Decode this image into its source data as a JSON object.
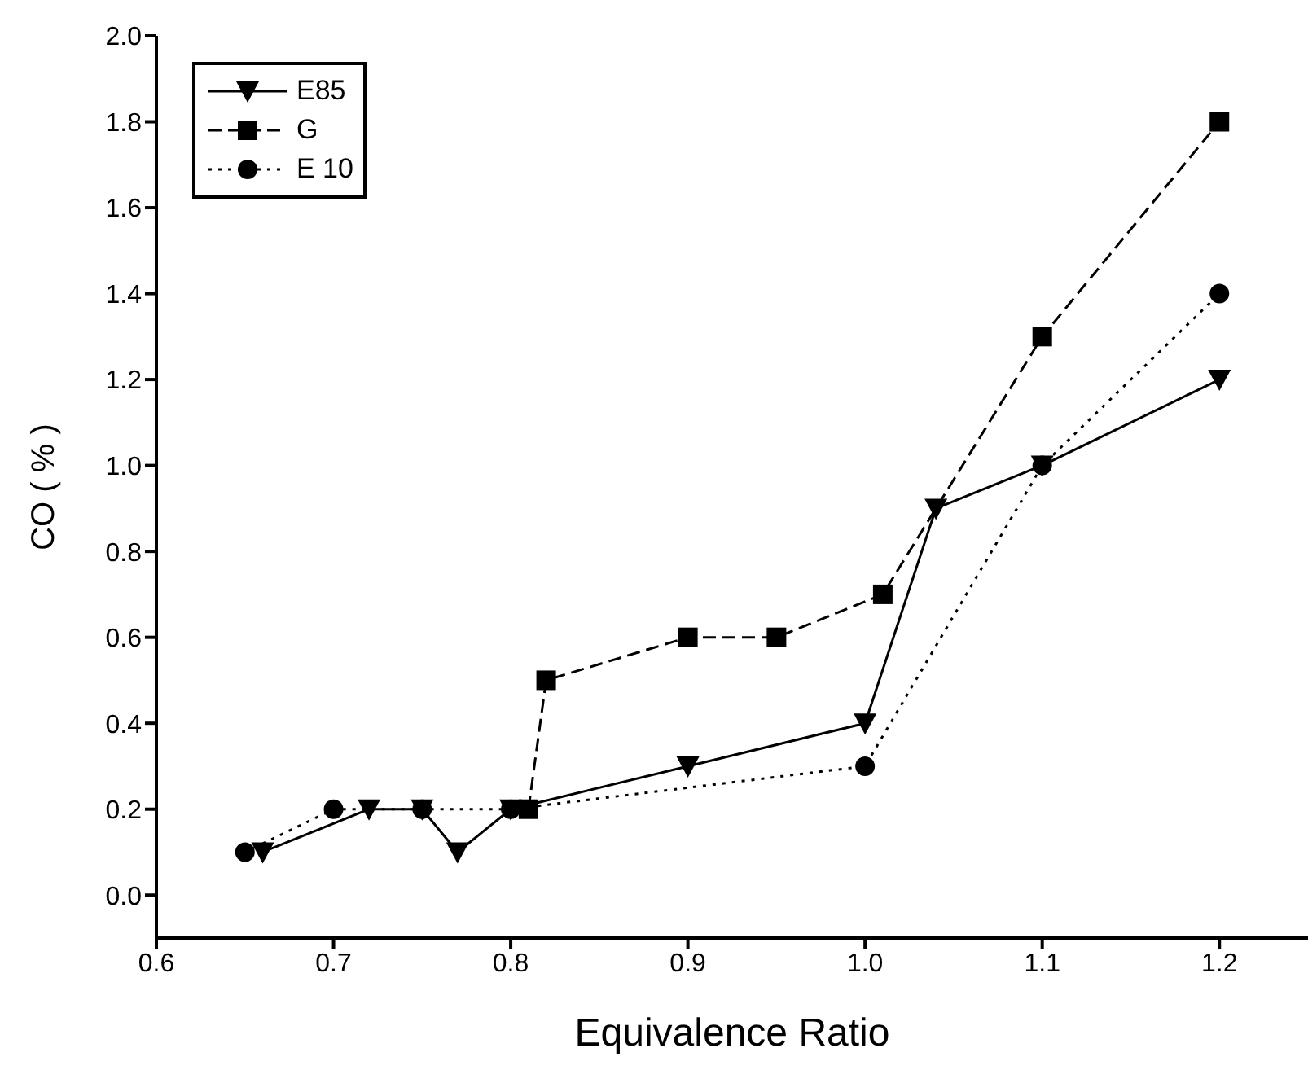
{
  "chart_data": {
    "type": "line",
    "xlabel": "Equivalence Ratio",
    "ylabel": "CO ( % )",
    "xlim": [
      0.6,
      1.25
    ],
    "xticks": [
      {
        "value": 0.6,
        "label": "0.6"
      },
      {
        "value": 0.7,
        "label": "0.7"
      },
      {
        "value": 0.8,
        "label": "0.8"
      },
      {
        "value": 0.9,
        "label": "0.9"
      },
      {
        "value": 1.0,
        "label": "1.0"
      },
      {
        "value": 1.1,
        "label": "1.1"
      },
      {
        "value": 1.2,
        "label": "1.2"
      }
    ],
    "ylim": [
      -0.1,
      2.0
    ],
    "yticks": [
      {
        "value": 0,
        "label": "0.0"
      },
      {
        "value": 0.2,
        "label": "0.2"
      },
      {
        "value": 0.4,
        "label": "0.4"
      },
      {
        "value": 0.6,
        "label": "0.6"
      },
      {
        "value": 0.8,
        "label": "0.8"
      },
      {
        "value": 1.0,
        "label": "1.0"
      },
      {
        "value": 1.2,
        "label": "1.2"
      },
      {
        "value": 1.4,
        "label": "1.4"
      },
      {
        "value": 1.6,
        "label": "1.6"
      },
      {
        "value": 1.8,
        "label": "1.8"
      },
      {
        "value": 2.0,
        "label": "2.0"
      }
    ],
    "grid": false,
    "legend": "top left",
    "series": [
      {
        "name": "E85",
        "color": "#000000",
        "marker": "triangle",
        "line_style": "solid",
        "x": [
          0.66,
          0.72,
          0.75,
          0.77,
          0.8,
          0.9,
          1.0,
          1.04,
          1.1,
          1.2
        ],
        "values": [
          0.1,
          0.2,
          0.2,
          0.1,
          0.2,
          0.3,
          0.4,
          0.9,
          1.0,
          1.2
        ]
      },
      {
        "name": "G",
        "color": "#000000",
        "marker": "square",
        "line_style": "dashed",
        "x": [
          0.81,
          0.82,
          0.9,
          0.95,
          1.01,
          1.1,
          1.2
        ],
        "values": [
          0.2,
          0.5,
          0.6,
          0.6,
          0.7,
          1.3,
          1.8
        ]
      },
      {
        "name": "E 10",
        "color": "#000000",
        "marker": "circle",
        "line_style": "dotted",
        "x": [
          0.65,
          0.7,
          0.75,
          0.8,
          1.0,
          1.1,
          1.2
        ],
        "values": [
          0.1,
          0.2,
          0.2,
          0.2,
          0.3,
          1.0,
          1.4
        ]
      }
    ]
  }
}
